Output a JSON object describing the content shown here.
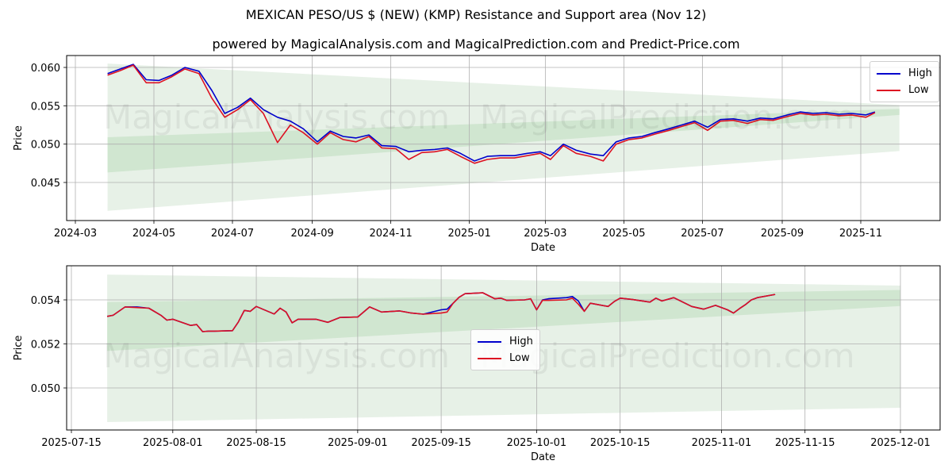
{
  "header": {
    "title": "MEXICAN PESO/US $ (NEW) (KMP) Resistance and Support area (Nov 12)",
    "subtitle": "powered by MagicalAnalysis.com and MagicalPrediction.com and Predict-Price.com"
  },
  "watermarks": [
    "MagicalAnalysis.com",
    "MagicalPrediction.com"
  ],
  "colors": {
    "high": "#0000cc",
    "low": "#dd1122",
    "band_outer": "#e4f0e4",
    "band_inner": "#c8e2c8",
    "grid": "#b0b0b0"
  },
  "legend": {
    "high": "High",
    "low": "Low"
  },
  "chart_data": [
    {
      "type": "line",
      "title": "Full history",
      "xlabel": "Date",
      "ylabel": "Price",
      "x_ticks": [
        "2024-03",
        "2024-05",
        "2024-07",
        "2024-09",
        "2024-11",
        "2025-01",
        "2025-03",
        "2025-05",
        "2025-07",
        "2025-09",
        "2025-11"
      ],
      "y_ticks": [
        "0.045",
        "0.050",
        "0.055",
        "0.060"
      ],
      "ylim": [
        0.0405,
        0.0615
      ],
      "grid": true,
      "legend_position": "upper right",
      "series": [
        {
          "name": "High",
          "x": [
            "2024-03-26",
            "2024-04-05",
            "2024-04-15",
            "2024-04-25",
            "2024-05-05",
            "2024-05-15",
            "2024-05-25",
            "2024-06-05",
            "2024-06-15",
            "2024-06-25",
            "2024-07-05",
            "2024-07-15",
            "2024-07-25",
            "2024-08-05",
            "2024-08-15",
            "2024-08-25",
            "2024-09-05",
            "2024-09-15",
            "2024-09-25",
            "2024-10-05",
            "2024-10-15",
            "2024-10-25",
            "2024-11-05",
            "2024-11-15",
            "2024-11-25",
            "2024-12-05",
            "2024-12-15",
            "2024-12-25",
            "2025-01-05",
            "2025-01-15",
            "2025-01-25",
            "2025-02-05",
            "2025-02-15",
            "2025-02-25",
            "2025-03-05",
            "2025-03-15",
            "2025-03-25",
            "2025-04-05",
            "2025-04-15",
            "2025-04-25",
            "2025-05-05",
            "2025-05-15",
            "2025-05-25",
            "2025-06-05",
            "2025-06-15",
            "2025-06-25",
            "2025-07-05",
            "2025-07-15",
            "2025-07-25",
            "2025-08-05",
            "2025-08-15",
            "2025-08-25",
            "2025-09-05",
            "2025-09-15",
            "2025-09-25",
            "2025-10-05",
            "2025-10-15",
            "2025-10-25",
            "2025-11-05",
            "2025-11-12"
          ],
          "values": [
            0.0592,
            0.0598,
            0.0604,
            0.0584,
            0.0583,
            0.059,
            0.06,
            0.0595,
            0.057,
            0.054,
            0.0548,
            0.056,
            0.0545,
            0.0535,
            0.053,
            0.052,
            0.0503,
            0.0517,
            0.051,
            0.0508,
            0.0512,
            0.0498,
            0.0497,
            0.049,
            0.0492,
            0.0493,
            0.0495,
            0.0488,
            0.0478,
            0.0484,
            0.0485,
            0.0485,
            0.0488,
            0.049,
            0.0485,
            0.05,
            0.0492,
            0.0487,
            0.0485,
            0.0503,
            0.0508,
            0.051,
            0.0515,
            0.052,
            0.0525,
            0.053,
            0.0522,
            0.0532,
            0.0533,
            0.053,
            0.0534,
            0.0533,
            0.0538,
            0.0542,
            0.054,
            0.0541,
            0.0539,
            0.054,
            0.0538,
            0.0542
          ]
        },
        {
          "name": "Low",
          "x": [
            "2024-03-26",
            "2024-04-05",
            "2024-04-15",
            "2024-04-25",
            "2024-05-05",
            "2024-05-15",
            "2024-05-25",
            "2024-06-05",
            "2024-06-15",
            "2024-06-25",
            "2024-07-05",
            "2024-07-15",
            "2024-07-25",
            "2024-08-05",
            "2024-08-15",
            "2024-08-25",
            "2024-09-05",
            "2024-09-15",
            "2024-09-25",
            "2024-10-05",
            "2024-10-15",
            "2024-10-25",
            "2024-11-05",
            "2024-11-15",
            "2024-11-25",
            "2024-12-05",
            "2024-12-15",
            "2024-12-25",
            "2025-01-05",
            "2025-01-15",
            "2025-01-25",
            "2025-02-05",
            "2025-02-15",
            "2025-02-25",
            "2025-03-05",
            "2025-03-15",
            "2025-03-25",
            "2025-04-05",
            "2025-04-15",
            "2025-04-25",
            "2025-05-05",
            "2025-05-15",
            "2025-05-25",
            "2025-06-05",
            "2025-06-15",
            "2025-06-25",
            "2025-07-05",
            "2025-07-15",
            "2025-07-25",
            "2025-08-05",
            "2025-08-15",
            "2025-08-25",
            "2025-09-05",
            "2025-09-15",
            "2025-09-25",
            "2025-10-05",
            "2025-10-15",
            "2025-10-25",
            "2025-11-05",
            "2025-11-12"
          ],
          "values": [
            0.059,
            0.0596,
            0.0603,
            0.058,
            0.058,
            0.0588,
            0.0598,
            0.0592,
            0.056,
            0.0535,
            0.0545,
            0.0558,
            0.054,
            0.0502,
            0.0525,
            0.0515,
            0.05,
            0.0515,
            0.0506,
            0.0503,
            0.051,
            0.0495,
            0.0494,
            0.048,
            0.0489,
            0.049,
            0.0493,
            0.0484,
            0.0475,
            0.048,
            0.0482,
            0.0482,
            0.0485,
            0.0488,
            0.048,
            0.0498,
            0.0488,
            0.0484,
            0.0478,
            0.05,
            0.0506,
            0.0508,
            0.0513,
            0.0518,
            0.0523,
            0.0528,
            0.0518,
            0.053,
            0.0531,
            0.0527,
            0.0532,
            0.0531,
            0.0536,
            0.054,
            0.0538,
            0.0539,
            0.0537,
            0.0538,
            0.0535,
            0.0541
          ]
        }
      ],
      "bands": [
        {
          "name": "outer",
          "start": "2024-03-26",
          "end": "2025-12-01",
          "upper": [
            0.0605,
            0.0551
          ],
          "lower": [
            0.0413,
            0.0491
          ]
        },
        {
          "name": "inner",
          "start": "2024-03-26",
          "end": "2025-12-01",
          "upper": [
            0.0509,
            0.0546
          ],
          "lower": [
            0.0463,
            0.0538
          ]
        }
      ]
    },
    {
      "type": "line",
      "title": "Recent detail",
      "xlabel": "Date",
      "ylabel": "Price",
      "x_ticks": [
        "2025-07-15",
        "2025-08-01",
        "2025-08-15",
        "2025-09-01",
        "2025-09-15",
        "2025-10-01",
        "2025-10-15",
        "2025-11-01",
        "2025-11-15",
        "2025-12-01"
      ],
      "y_ticks": [
        "0.050",
        "0.052",
        "0.054"
      ],
      "ylim": [
        0.0482,
        0.0556
      ],
      "grid": true,
      "legend_position": "center",
      "series": [
        {
          "name": "High",
          "x": [
            "2025-07-21",
            "2025-07-22",
            "2025-07-24",
            "2025-07-26",
            "2025-07-28",
            "2025-07-30",
            "2025-07-31",
            "2025-08-01",
            "2025-08-04",
            "2025-08-05",
            "2025-08-06",
            "2025-08-07",
            "2025-08-08",
            "2025-08-11",
            "2025-08-12",
            "2025-08-13",
            "2025-08-14",
            "2025-08-15",
            "2025-08-18",
            "2025-08-19",
            "2025-08-20",
            "2025-08-21",
            "2025-08-22",
            "2025-08-25",
            "2025-08-27",
            "2025-08-29",
            "2025-09-01",
            "2025-09-03",
            "2025-09-05",
            "2025-09-08",
            "2025-09-10",
            "2025-09-12",
            "2025-09-15",
            "2025-09-16",
            "2025-09-17",
            "2025-09-18",
            "2025-09-19",
            "2025-09-22",
            "2025-09-24",
            "2025-09-25",
            "2025-09-26",
            "2025-09-29",
            "2025-09-30",
            "2025-10-01",
            "2025-10-02",
            "2025-10-03",
            "2025-10-06",
            "2025-10-07",
            "2025-10-08",
            "2025-10-09",
            "2025-10-10",
            "2025-10-13",
            "2025-10-14",
            "2025-10-15",
            "2025-10-17",
            "2025-10-20",
            "2025-10-21",
            "2025-10-22",
            "2025-10-24",
            "2025-10-27",
            "2025-10-29",
            "2025-10-31",
            "2025-11-02",
            "2025-11-03",
            "2025-11-04",
            "2025-11-05",
            "2025-11-06",
            "2025-11-07",
            "2025-11-10"
          ],
          "values": [
            0.05325,
            0.0533,
            0.05368,
            0.05368,
            0.05362,
            0.0533,
            0.05308,
            0.05312,
            0.05284,
            0.05288,
            0.05256,
            0.05258,
            0.05258,
            0.0526,
            0.053,
            0.05352,
            0.05348,
            0.0537,
            0.05336,
            0.05362,
            0.05345,
            0.05296,
            0.05312,
            0.05312,
            0.05298,
            0.0532,
            0.05322,
            0.05368,
            0.05345,
            0.0535,
            0.0534,
            0.05335,
            0.05355,
            0.05358,
            0.05385,
            0.05412,
            0.05428,
            0.05432,
            0.05405,
            0.05408,
            0.05398,
            0.054,
            0.05405,
            0.05355,
            0.054,
            0.05405,
            0.0541,
            0.05415,
            0.05395,
            0.05348,
            0.05385,
            0.0537,
            0.05392,
            0.05408,
            0.05402,
            0.0539,
            0.05408,
            0.05395,
            0.0541,
            0.0537,
            0.05358,
            0.05375,
            0.05355,
            0.0534,
            0.0536,
            0.05378,
            0.054,
            0.0541,
            0.05425
          ]
        },
        {
          "name": "Low",
          "x": [
            "2025-07-21",
            "2025-07-22",
            "2025-07-24",
            "2025-07-26",
            "2025-07-28",
            "2025-07-30",
            "2025-07-31",
            "2025-08-01",
            "2025-08-04",
            "2025-08-05",
            "2025-08-06",
            "2025-08-07",
            "2025-08-08",
            "2025-08-11",
            "2025-08-12",
            "2025-08-13",
            "2025-08-14",
            "2025-08-15",
            "2025-08-18",
            "2025-08-19",
            "2025-08-20",
            "2025-08-21",
            "2025-08-22",
            "2025-08-25",
            "2025-08-27",
            "2025-08-29",
            "2025-09-01",
            "2025-09-03",
            "2025-09-05",
            "2025-09-08",
            "2025-09-10",
            "2025-09-12",
            "2025-09-15",
            "2025-09-16",
            "2025-09-17",
            "2025-09-18",
            "2025-09-19",
            "2025-09-22",
            "2025-09-24",
            "2025-09-25",
            "2025-09-26",
            "2025-09-29",
            "2025-09-30",
            "2025-10-01",
            "2025-10-02",
            "2025-10-03",
            "2025-10-06",
            "2025-10-07",
            "2025-10-08",
            "2025-10-09",
            "2025-10-10",
            "2025-10-13",
            "2025-10-14",
            "2025-10-15",
            "2025-10-17",
            "2025-10-20",
            "2025-10-21",
            "2025-10-22",
            "2025-10-24",
            "2025-10-27",
            "2025-10-29",
            "2025-10-31",
            "2025-11-02",
            "2025-11-03",
            "2025-11-04",
            "2025-11-05",
            "2025-11-06",
            "2025-11-07",
            "2025-11-10"
          ],
          "values": [
            0.05325,
            0.0533,
            0.05368,
            0.05365,
            0.05362,
            0.0533,
            0.05308,
            0.05312,
            0.05284,
            0.05288,
            0.05256,
            0.05258,
            0.05258,
            0.0526,
            0.053,
            0.05352,
            0.05348,
            0.0537,
            0.05336,
            0.05362,
            0.05345,
            0.05296,
            0.05312,
            0.05312,
            0.05298,
            0.0532,
            0.05322,
            0.05368,
            0.05345,
            0.0535,
            0.0534,
            0.05335,
            0.0534,
            0.05345,
            0.05385,
            0.05412,
            0.05428,
            0.05432,
            0.05405,
            0.05408,
            0.05398,
            0.054,
            0.05405,
            0.05355,
            0.05398,
            0.05398,
            0.054,
            0.05408,
            0.0538,
            0.05348,
            0.05385,
            0.0537,
            0.05392,
            0.05408,
            0.05402,
            0.0539,
            0.05408,
            0.05395,
            0.0541,
            0.0537,
            0.05358,
            0.05375,
            0.05355,
            0.0534,
            0.0536,
            0.05378,
            0.054,
            0.0541,
            0.05425
          ]
        }
      ],
      "bands": [
        {
          "name": "outer",
          "start": "2025-07-21",
          "end": "2025-12-01",
          "upper": [
            0.05515,
            0.05465
          ],
          "lower": [
            0.04845,
            0.0491
          ]
        },
        {
          "name": "inner",
          "start": "2025-07-21",
          "end": "2025-12-01",
          "upper": [
            0.0539,
            0.05445
          ],
          "lower": [
            0.05168,
            0.05372
          ]
        }
      ]
    }
  ],
  "axes": {
    "top": {
      "xlabel": "Date",
      "ylabel": "Price"
    },
    "bottom": {
      "xlabel": "Date",
      "ylabel": "Price"
    }
  }
}
